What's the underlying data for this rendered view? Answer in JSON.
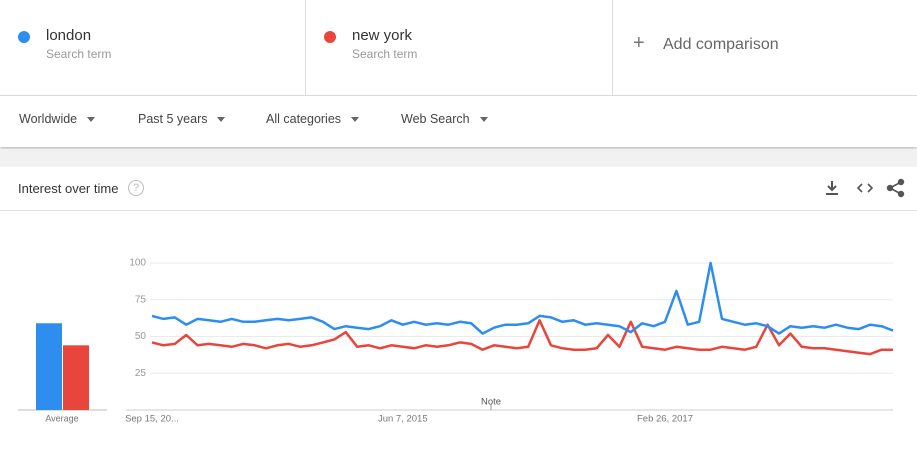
{
  "search_terms": [
    {
      "subtitle": "Search term"
    },
    {
      "subtitle": "Search term"
    }
  ],
  "add_comparison": "Add comparison",
  "filters": [
    "Worldwide",
    "Past 5 years",
    "All categories",
    "Web Search"
  ],
  "card": {
    "title": "Interest over time"
  },
  "chart_data": {
    "type": "line",
    "categories": [
      "Sep 15, 20...",
      null,
      null,
      null,
      null,
      null,
      null,
      null,
      null,
      null,
      null,
      null,
      null,
      null,
      null,
      null,
      null,
      null,
      null,
      null,
      null,
      null,
      "Jun 7, 2015",
      null,
      null,
      null,
      null,
      null,
      null,
      null,
      null,
      null,
      null,
      null,
      null,
      null,
      null,
      null,
      null,
      null,
      null,
      null,
      null,
      null,
      null,
      "Feb 26, 2017",
      null,
      null,
      null,
      null,
      null,
      null,
      null,
      null,
      null,
      null,
      null,
      null,
      null,
      null,
      null,
      null,
      null,
      null,
      null,
      null
    ],
    "series": [
      {
        "name": "london",
        "color": "#2d8ef0",
        "values": [
          64,
          62,
          63,
          58,
          62,
          61,
          60,
          62,
          60,
          60,
          61,
          62,
          61,
          62,
          63,
          60,
          55,
          57,
          56,
          55,
          57,
          61,
          58,
          60,
          58,
          59,
          58,
          60,
          59,
          52,
          56,
          58,
          58,
          59,
          64,
          63,
          60,
          61,
          58,
          59,
          58,
          57,
          53,
          59,
          57,
          60,
          81,
          58,
          60,
          100,
          62,
          60,
          58,
          59,
          57,
          52,
          57,
          56,
          57,
          56,
          58,
          56,
          55,
          58,
          57,
          54
        ]
      },
      {
        "name": "new york",
        "color": "#e8453c",
        "values": [
          46,
          44,
          45,
          51,
          44,
          45,
          44,
          43,
          45,
          44,
          42,
          44,
          45,
          43,
          44,
          46,
          48,
          53,
          43,
          44,
          42,
          44,
          43,
          42,
          44,
          43,
          44,
          46,
          45,
          41,
          44,
          43,
          42,
          43,
          61,
          44,
          42,
          41,
          41,
          42,
          51,
          43,
          60,
          43,
          42,
          41,
          43,
          42,
          41,
          41,
          43,
          42,
          41,
          43,
          58,
          44,
          52,
          43,
          42,
          42,
          41,
          40,
          39,
          38,
          41,
          41
        ]
      }
    ],
    "ylim": [
      0,
      100
    ],
    "yticks": [
      25,
      50,
      75,
      100
    ],
    "grid": true,
    "averages": {
      "label": "Average",
      "values": [
        59,
        44
      ]
    },
    "note": "Note"
  }
}
